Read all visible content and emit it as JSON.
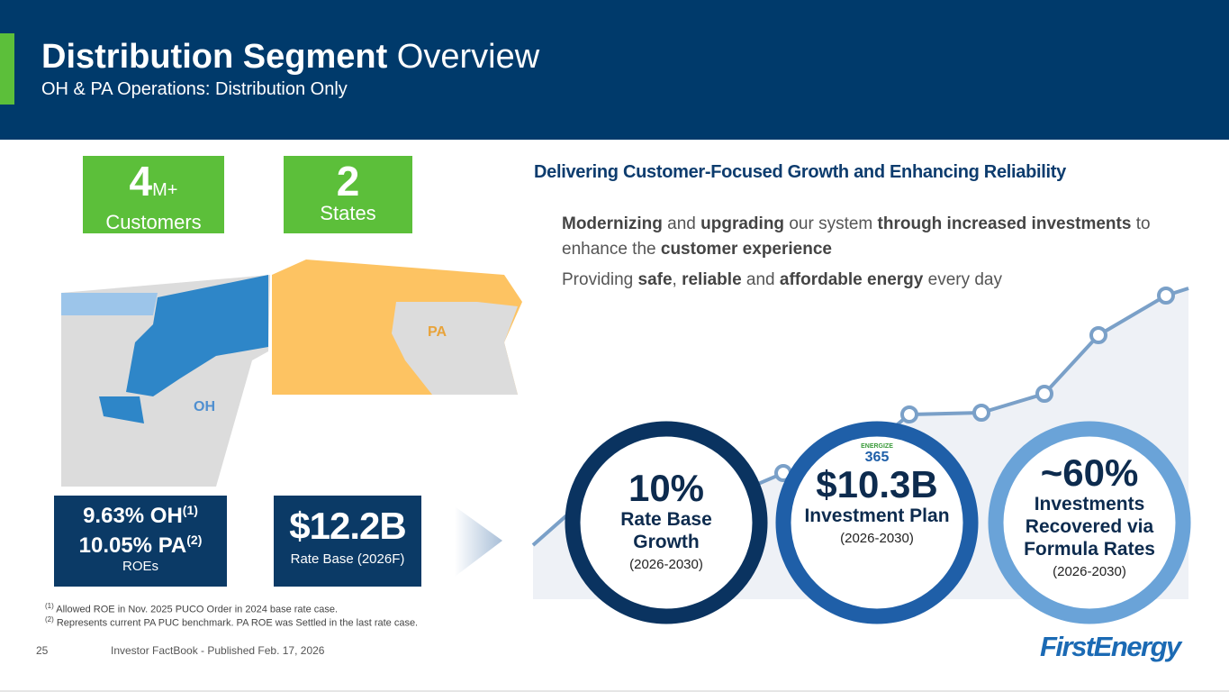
{
  "header": {
    "title_bold": "Distribution Segment",
    "title_rest": "Overview",
    "subtitle": "OH & PA Operations: Distribution Only"
  },
  "stats": [
    {
      "value": "4",
      "unit": "M+",
      "label": "Customers"
    },
    {
      "value": "2",
      "label": "States"
    }
  ],
  "map": {
    "oh_label": "OH",
    "pa_label": "PA"
  },
  "roe": {
    "line1": "9.63% OH",
    "note1": "(1)",
    "line2": "10.05% PA",
    "note2": "(2)",
    "label": "ROEs"
  },
  "rate_base": {
    "value": "$12.2B",
    "label": "Rate Base (2026F)"
  },
  "footnotes": [
    {
      "marker": "(1)",
      "text": "Allowed ROE in Nov. 2025 PUCO Order in 2024 base rate case."
    },
    {
      "marker": "(2)",
      "text": "Represents current PA PUC benchmark. PA ROE was Settled in the last rate case."
    }
  ],
  "footer": {
    "page": "25",
    "text": "Investor FactBook - Published Feb. 17, 2026"
  },
  "heading": "Delivering Customer-Focused Growth and Enhancing Reliability",
  "bullets": [
    [
      {
        "text": "Modernizing",
        "bold": true
      },
      {
        "text": " and ",
        "bold": false
      },
      {
        "text": "upgrading",
        "bold": true
      },
      {
        "text": " our system ",
        "bold": false
      },
      {
        "text": "through increased investments",
        "bold": true
      },
      {
        "text": " to enhance the ",
        "bold": false
      },
      {
        "text": "customer experience",
        "bold": true
      }
    ],
    [
      {
        "text": "Providing ",
        "bold": false
      },
      {
        "text": "safe",
        "bold": true
      },
      {
        "text": ", ",
        "bold": false
      },
      {
        "text": "reliable",
        "bold": true
      },
      {
        "text": " and ",
        "bold": false
      },
      {
        "text": "affordable energy",
        "bold": true
      },
      {
        "text": " every day",
        "bold": false
      }
    ]
  ],
  "circles": [
    {
      "value": "10%",
      "label": "Rate Base Growth",
      "period": "(2026-2030)"
    },
    {
      "logo_top": "ENERGIZE",
      "logo_bottom": "365",
      "value": "$10.3B",
      "label": "Investment Plan",
      "period": "(2026-2030)"
    },
    {
      "value": "~60%",
      "label": "Investments Recovered via Formula Rates",
      "period": "(2026-2030)"
    }
  ],
  "logo": "FirstEnergy"
}
